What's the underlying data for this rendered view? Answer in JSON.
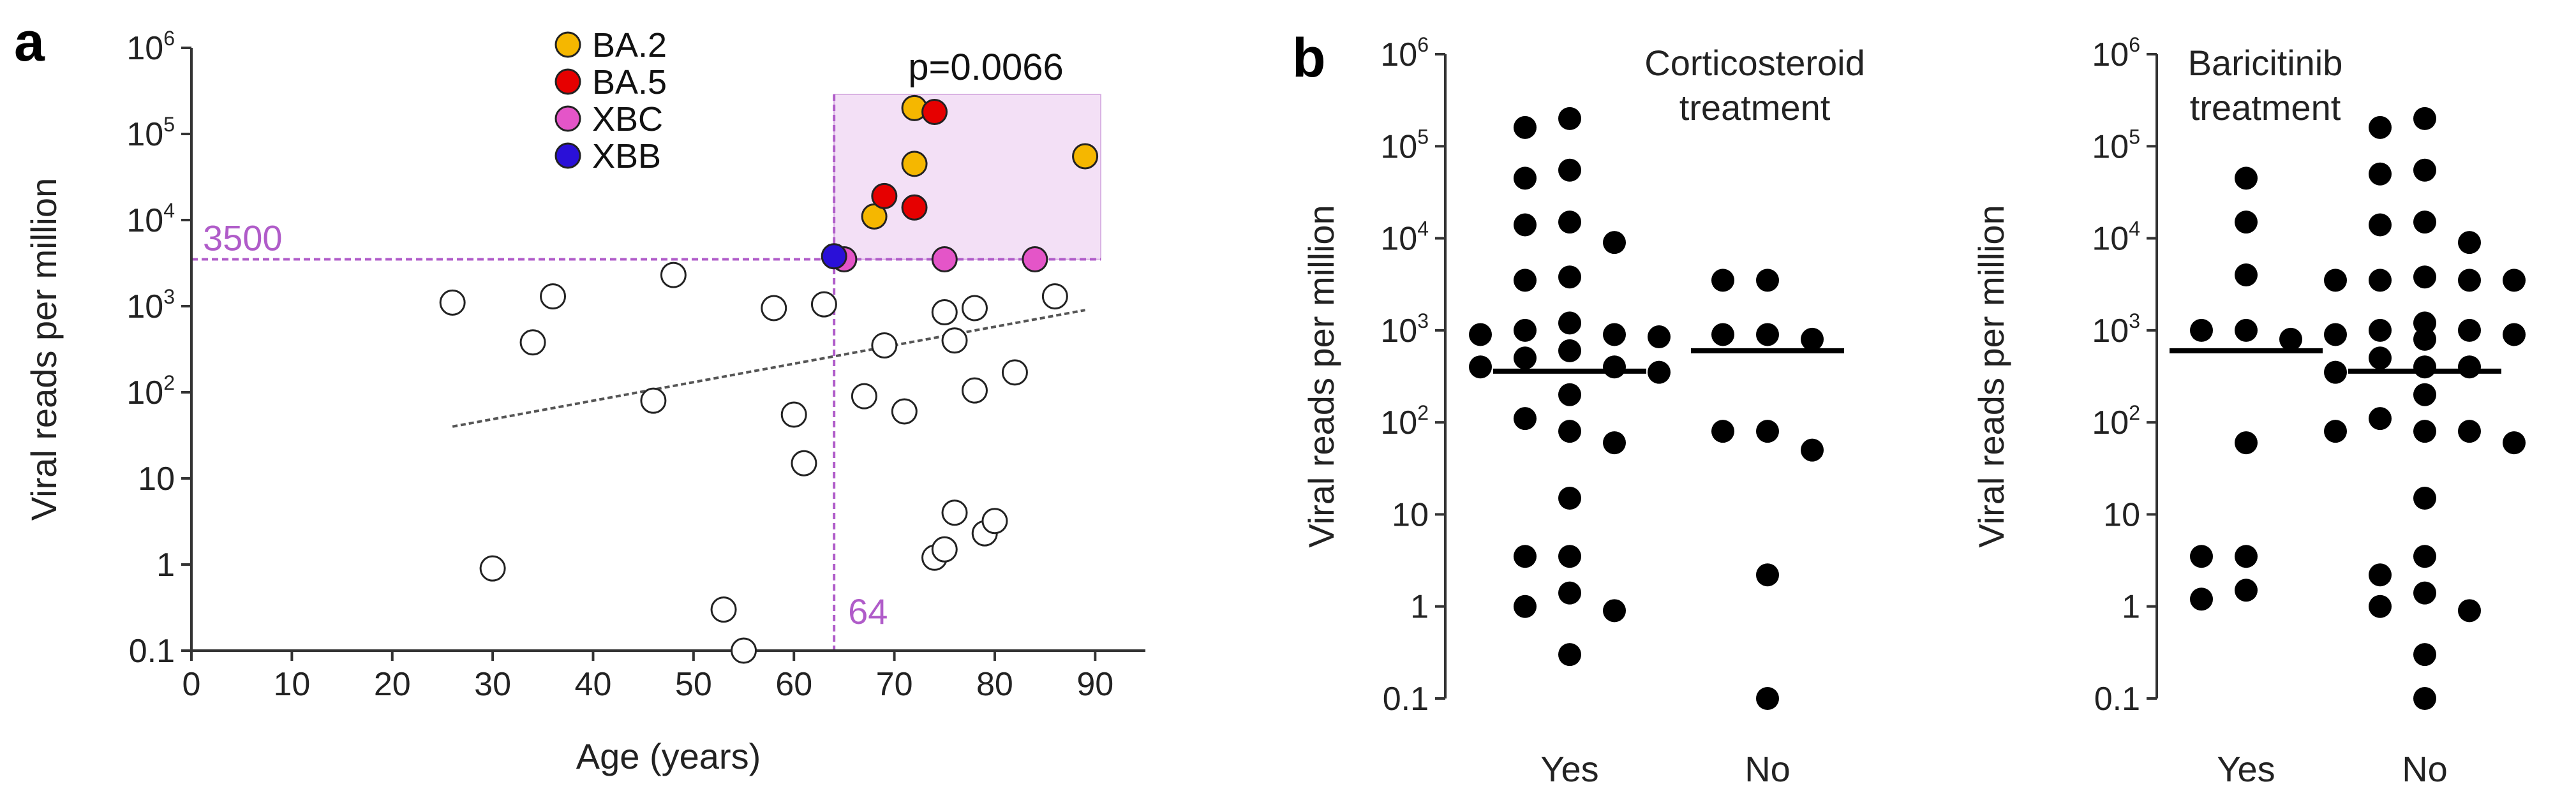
{
  "panel_a": {
    "letter": "a",
    "xlabel": "Age (years)",
    "ylabel": "Viral reads per million",
    "pvalue": "p=0.0066",
    "threshold_y_label": "3500",
    "threshold_x_label": "64",
    "accent_color": "#b05cc9",
    "shade_color": "#f3e0f6"
  },
  "panel_b": {
    "letter": "b",
    "ylabel": "Viral reads per million",
    "left_title_line1": "Corticosteroid",
    "left_title_line2": "treatment",
    "right_title_line1": "Baricitinib",
    "right_title_line2": "treatment"
  },
  "chart_data": [
    {
      "type": "scatter",
      "xlabel": "Age (years)",
      "ylabel": "Viral reads per million",
      "xlim": [
        0,
        95
      ],
      "ylim": [
        0.1,
        1000000
      ],
      "yscale": "log",
      "xticks": [
        "0",
        "10",
        "20",
        "30",
        "40",
        "50",
        "60",
        "70",
        "80",
        "90"
      ],
      "yticks": [
        {
          "v": 0.1,
          "t": "0.1"
        },
        {
          "v": 1,
          "t": "1"
        },
        {
          "v": 10,
          "t": "10"
        },
        {
          "v": 100,
          "t": "10",
          "e": "2"
        },
        {
          "v": 1000,
          "t": "10",
          "e": "3"
        },
        {
          "v": 10000,
          "t": "10",
          "e": "4"
        },
        {
          "v": 100000,
          "t": "10",
          "e": "5"
        },
        {
          "v": 1000000,
          "t": "10",
          "e": "6"
        }
      ],
      "legend": [
        {
          "name": "BA.2",
          "color": "#f5b700"
        },
        {
          "name": "BA.5",
          "color": "#e60000"
        },
        {
          "name": "XBC",
          "color": "#e455c8"
        },
        {
          "name": "XBB",
          "color": "#2a10d8"
        }
      ],
      "legend_position": "top-center",
      "thresholds": {
        "y": 3500,
        "x": 64
      },
      "annotation": "p=0.0066",
      "trendline": {
        "x": [
          26,
          89
        ],
        "y": [
          40,
          900
        ]
      },
      "series": [
        {
          "name": "BA.2",
          "color": "#f5b700",
          "points": [
            [
              72,
              200000
            ],
            [
              89,
              55000
            ],
            [
              72,
              45000
            ],
            [
              68,
              11000
            ]
          ]
        },
        {
          "name": "BA.5",
          "color": "#e60000",
          "points": [
            [
              74,
              180000
            ],
            [
              69,
              19000
            ],
            [
              72,
              14000
            ]
          ]
        },
        {
          "name": "XBC",
          "color": "#e455c8",
          "points": [
            [
              65,
              3500
            ],
            [
              75,
              3500
            ],
            [
              84,
              3500
            ]
          ]
        },
        {
          "name": "XBB",
          "color": "#2a10d8",
          "points": [
            [
              64,
              3800
            ]
          ]
        },
        {
          "color": "#ffffff",
          "points": [
            [
              26,
              1100
            ],
            [
              30,
              0.9
            ],
            [
              34,
              380
            ],
            [
              36,
              1300
            ],
            [
              46,
              80
            ],
            [
              48,
              2300
            ],
            [
              53,
              0.3
            ],
            [
              55,
              0.1
            ],
            [
              58,
              950
            ],
            [
              60,
              55
            ],
            [
              61,
              15
            ],
            [
              63,
              1050
            ],
            [
              67,
              90
            ],
            [
              69,
              350
            ],
            [
              71,
              60
            ],
            [
              74,
              1.2
            ],
            [
              75,
              1.5
            ],
            [
              75,
              850
            ],
            [
              76,
              4
            ],
            [
              76,
              400
            ],
            [
              78,
              950
            ],
            [
              78,
              105
            ],
            [
              79,
              2.3
            ],
            [
              80,
              3.2
            ],
            [
              82,
              170
            ],
            [
              86,
              1300
            ]
          ]
        }
      ]
    },
    {
      "type": "scatter",
      "title": "Corticosteroid treatment",
      "ylabel": "Viral reads per million",
      "yscale": "log",
      "ylim": [
        0.1,
        1000000
      ],
      "categories": [
        "Yes",
        "No"
      ],
      "medians": [
        360,
        600
      ],
      "series": [
        {
          "category": "Yes",
          "values": [
            200000,
            160000,
            55000,
            45000,
            15000,
            14000,
            9000,
            3800,
            3500,
            1200,
            1000,
            900,
            900,
            850,
            600,
            500,
            400,
            400,
            350,
            200,
            110,
            80,
            60,
            15,
            3.5,
            3.5,
            1.4,
            1,
            0.9,
            0.3
          ]
        },
        {
          "category": "No",
          "values": [
            3500,
            3500,
            900,
            900,
            800,
            80,
            80,
            50,
            2.2,
            0.1
          ]
        }
      ]
    },
    {
      "type": "scatter",
      "title": "Baricitinib treatment",
      "ylabel": "Viral reads per million",
      "yscale": "log",
      "ylim": [
        0.1,
        1000000
      ],
      "categories": [
        "Yes",
        "No"
      ],
      "medians": [
        600,
        360
      ],
      "series": [
        {
          "category": "Yes",
          "values": [
            45000,
            15000,
            4000,
            1000,
            1000,
            800,
            60,
            3.5,
            3.5,
            1.5,
            1.2
          ]
        },
        {
          "category": "No",
          "values": [
            200000,
            160000,
            55000,
            50000,
            15000,
            14000,
            9000,
            3800,
            3500,
            3500,
            3500,
            3500,
            1200,
            1000,
            1000,
            900,
            900,
            800,
            500,
            400,
            400,
            350,
            200,
            110,
            80,
            80,
            80,
            60,
            15,
            3.5,
            2.2,
            1.4,
            1,
            0.9,
            0.3,
            0.1
          ]
        }
      ]
    }
  ]
}
